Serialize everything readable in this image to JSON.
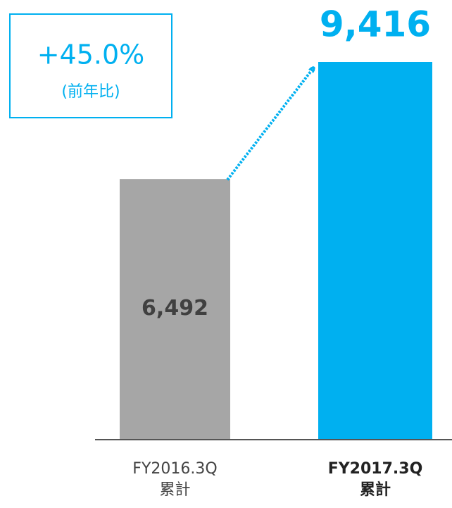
{
  "chart_data": {
    "type": "bar",
    "categories": [
      [
        "FY2016.3Q",
        "累計"
      ],
      [
        "FY2017.3Q",
        "累計"
      ]
    ],
    "values": [
      6492,
      9416
    ],
    "value_labels": [
      "6,492",
      "9,416"
    ],
    "colors": [
      "#a6a6a6",
      "#00b0f0"
    ],
    "annotations": [
      "+45.0%",
      "(前年比)"
    ]
  }
}
